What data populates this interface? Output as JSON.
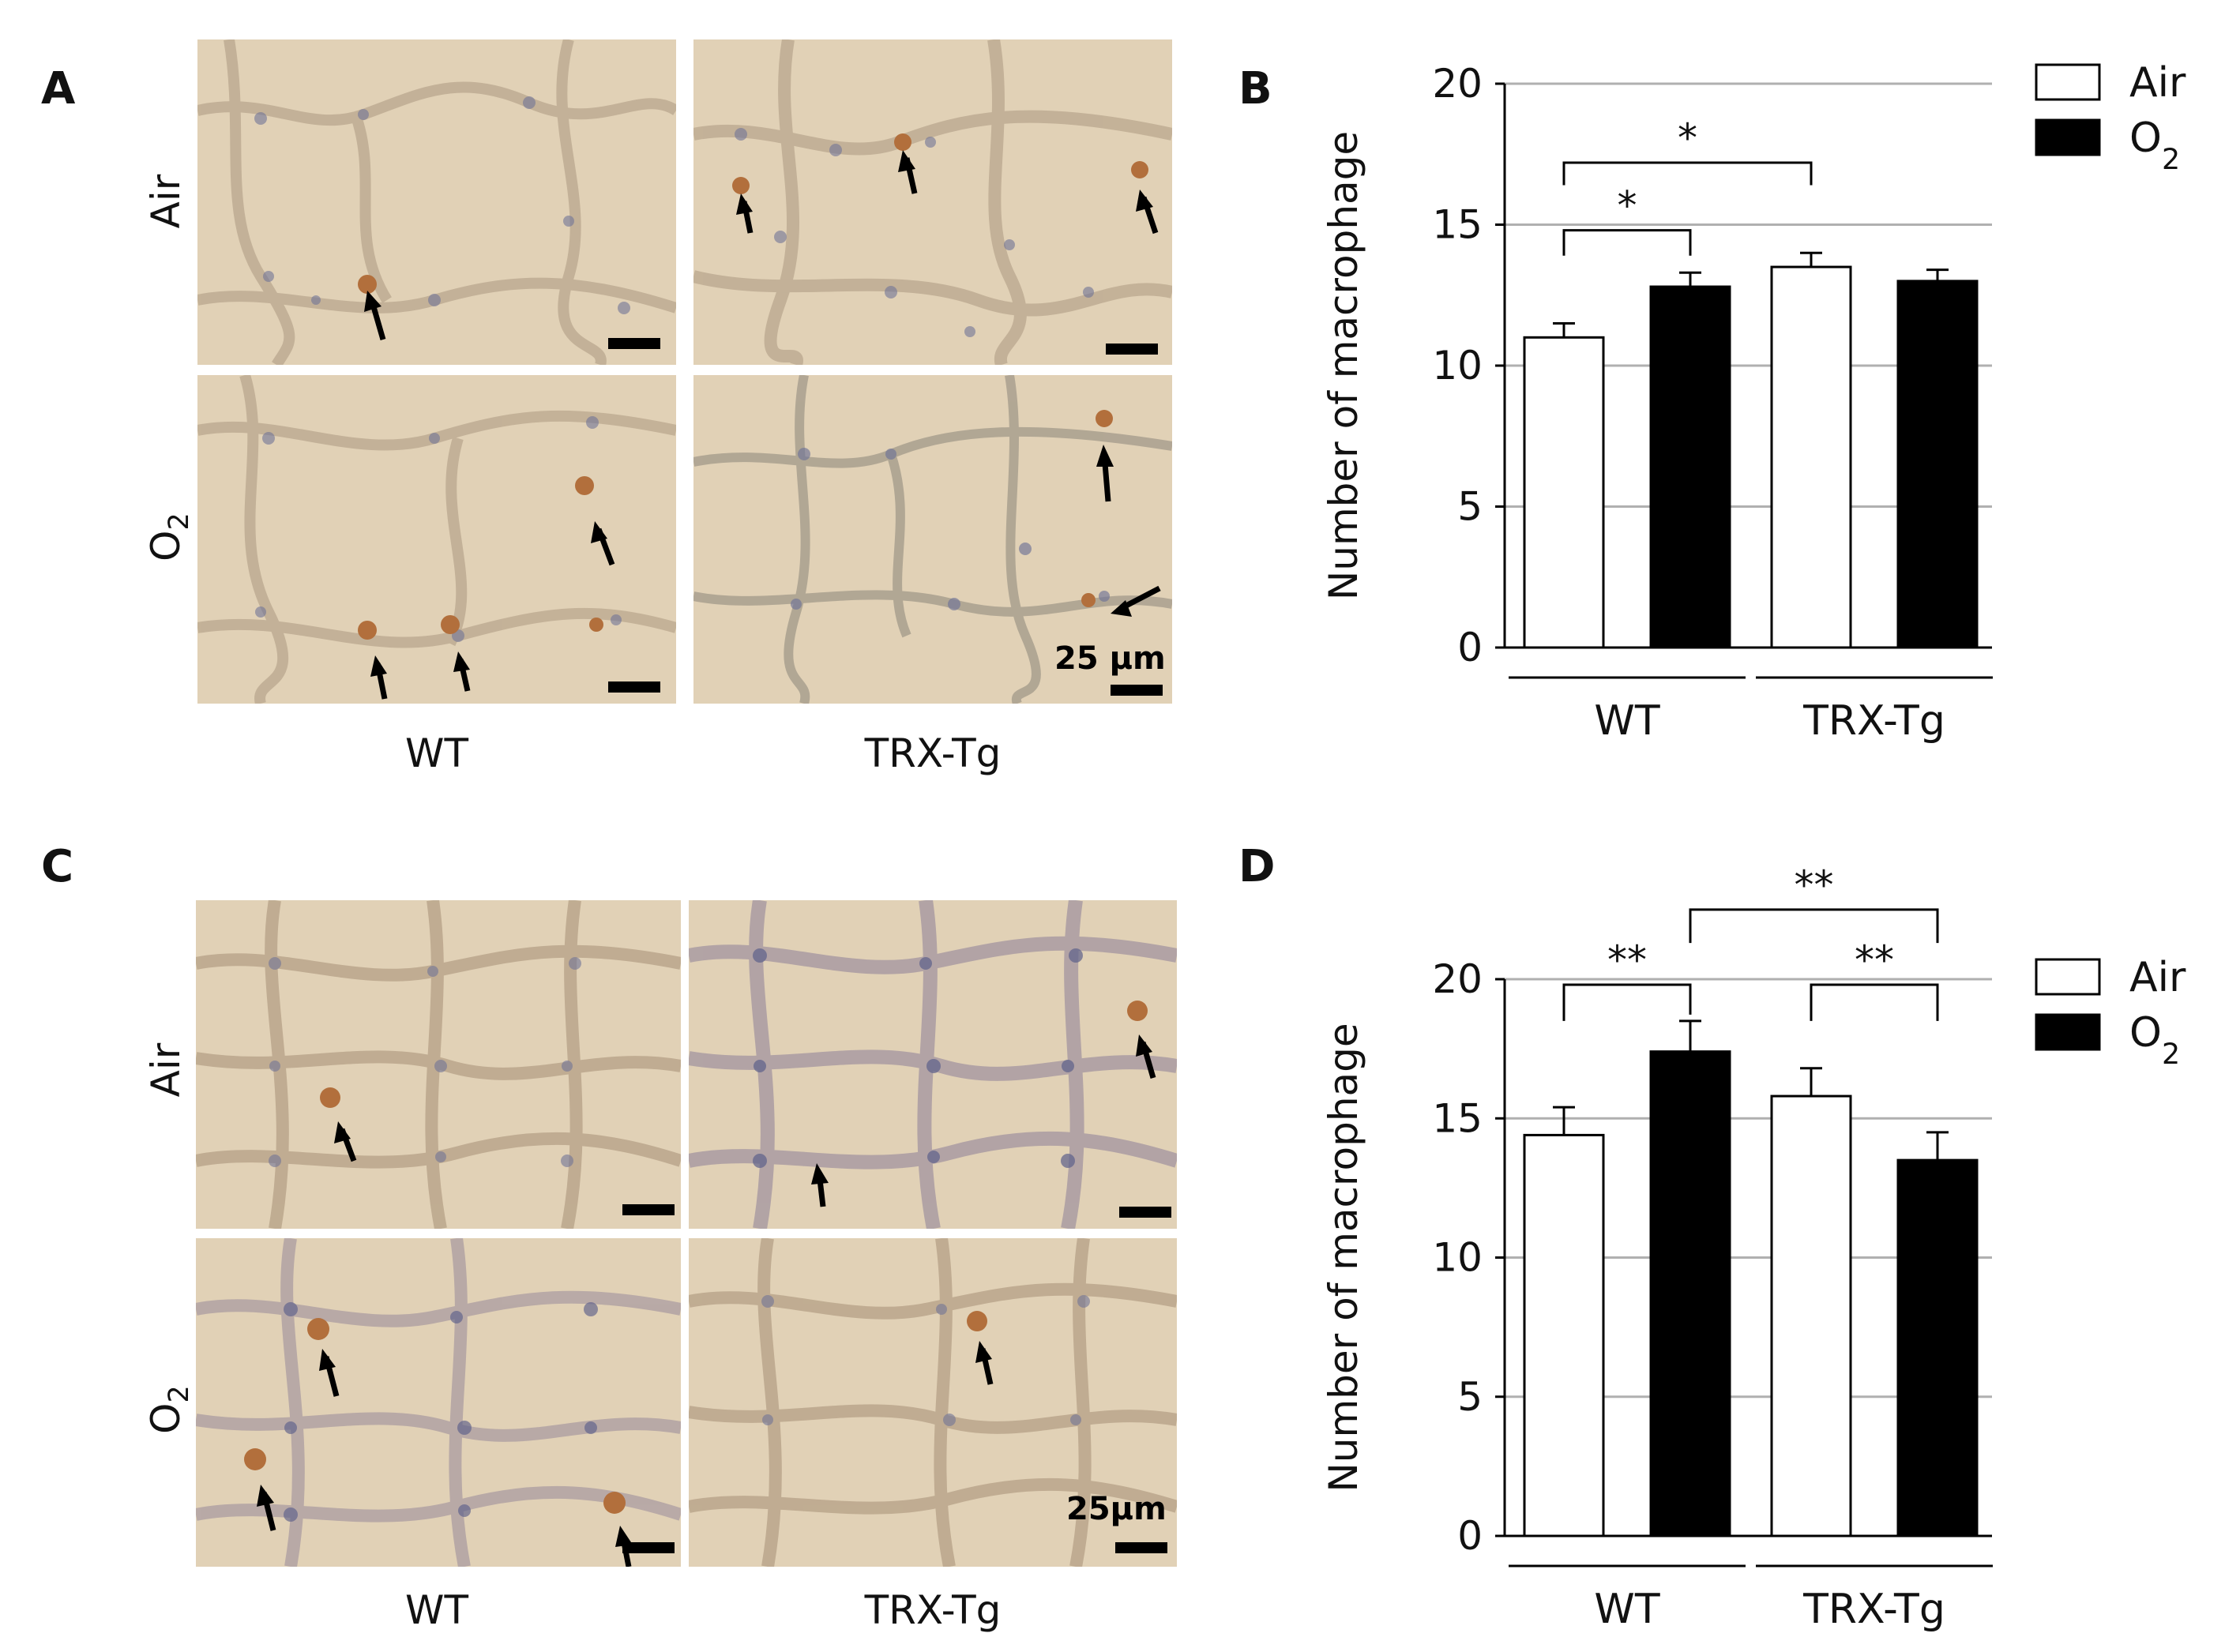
{
  "panels": {
    "A": {
      "letter": "A"
    },
    "B": {
      "letter": "B"
    },
    "C": {
      "letter": "C"
    },
    "D": {
      "letter": "D"
    }
  },
  "micrographs": {
    "top": {
      "row_labels": [
        "Air",
        "O2"
      ],
      "col_labels": [
        "WT",
        "TRX-Tg"
      ],
      "scale_label": "25 μm"
    },
    "bottom": {
      "row_labels": [
        "Air",
        "O2"
      ],
      "col_labels": [
        "WT",
        "TRX-Tg"
      ],
      "scale_label": "25μm"
    }
  },
  "colors": {
    "tissue_background": "#e1d1b6",
    "air_bar": "#ffffff",
    "o2_bar": "#000000",
    "gridline": "#b0b0b0"
  },
  "chart_data": [
    {
      "panel": "B",
      "type": "bar",
      "ylabel": "Number of macrophage",
      "ylim": [
        0,
        20
      ],
      "yticks": [
        0,
        5,
        10,
        15,
        20
      ],
      "categories": [
        "WT",
        "TRX-Tg"
      ],
      "series": [
        {
          "name": "Air",
          "values": [
            11.0,
            13.5
          ],
          "errors": [
            0.5,
            0.5
          ]
        },
        {
          "name": "O2",
          "values": [
            12.8,
            13.0
          ],
          "errors": [
            0.5,
            0.4
          ]
        }
      ],
      "significance": [
        {
          "from": "WT-Air",
          "to": "WT-O2",
          "label": "*"
        },
        {
          "from": "WT-Air",
          "to": "TRX-Tg-Air",
          "label": "*"
        }
      ],
      "legend": "top-right",
      "grid": true
    },
    {
      "panel": "D",
      "type": "bar",
      "ylabel": "Number of macrophage",
      "ylim": [
        0,
        20
      ],
      "yticks": [
        0,
        5,
        10,
        15,
        20
      ],
      "categories": [
        "WT",
        "TRX-Tg"
      ],
      "series": [
        {
          "name": "Air",
          "values": [
            14.4,
            15.8
          ],
          "errors": [
            1.0,
            1.0
          ]
        },
        {
          "name": "O2",
          "values": [
            17.4,
            13.5
          ],
          "errors": [
            1.1,
            1.0
          ]
        }
      ],
      "significance": [
        {
          "from": "WT-Air",
          "to": "WT-O2",
          "label": "**"
        },
        {
          "from": "TRX-Tg-Air",
          "to": "TRX-Tg-O2",
          "label": "**"
        },
        {
          "from": "WT-O2",
          "to": "TRX-Tg-O2",
          "label": "**"
        }
      ],
      "legend": "top-right",
      "grid": true
    }
  ]
}
